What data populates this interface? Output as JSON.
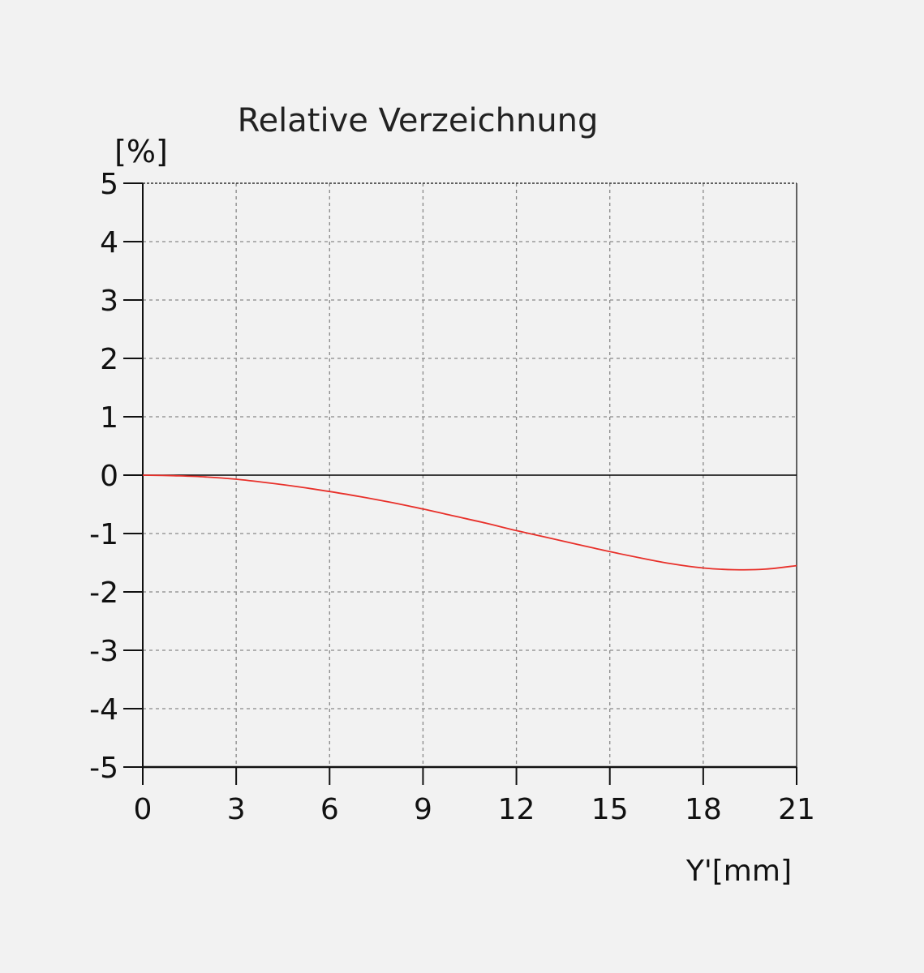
{
  "chart_data": {
    "type": "line",
    "title": "Relative Verzeichnung",
    "ylabel": "[%]",
    "xlabel": "Y'[mm]",
    "xlim": [
      0,
      21
    ],
    "ylim": [
      -5,
      5
    ],
    "x_ticks": [
      "0",
      "3",
      "6",
      "9",
      "12",
      "15",
      "18",
      "21"
    ],
    "y_ticks": [
      "5",
      "4",
      "3",
      "2",
      "1",
      "0",
      "-1",
      "-2",
      "-3",
      "-4",
      "-5"
    ],
    "grid": true,
    "series": [
      {
        "color": "#e8302a",
        "x": [
          0,
          1,
          2,
          3,
          4,
          5,
          6,
          7,
          8,
          9,
          10,
          11,
          12,
          13,
          14,
          15,
          16,
          17,
          18,
          19,
          20,
          21
        ],
        "y": [
          0,
          -0.01,
          -0.03,
          -0.07,
          -0.13,
          -0.2,
          -0.28,
          -0.37,
          -0.47,
          -0.58,
          -0.7,
          -0.82,
          -0.95,
          -1.07,
          -1.19,
          -1.31,
          -1.42,
          -1.52,
          -1.59,
          -1.62,
          -1.61,
          -1.55
        ]
      }
    ],
    "zero_line_color": "#000000",
    "grid_color": "#888888"
  }
}
